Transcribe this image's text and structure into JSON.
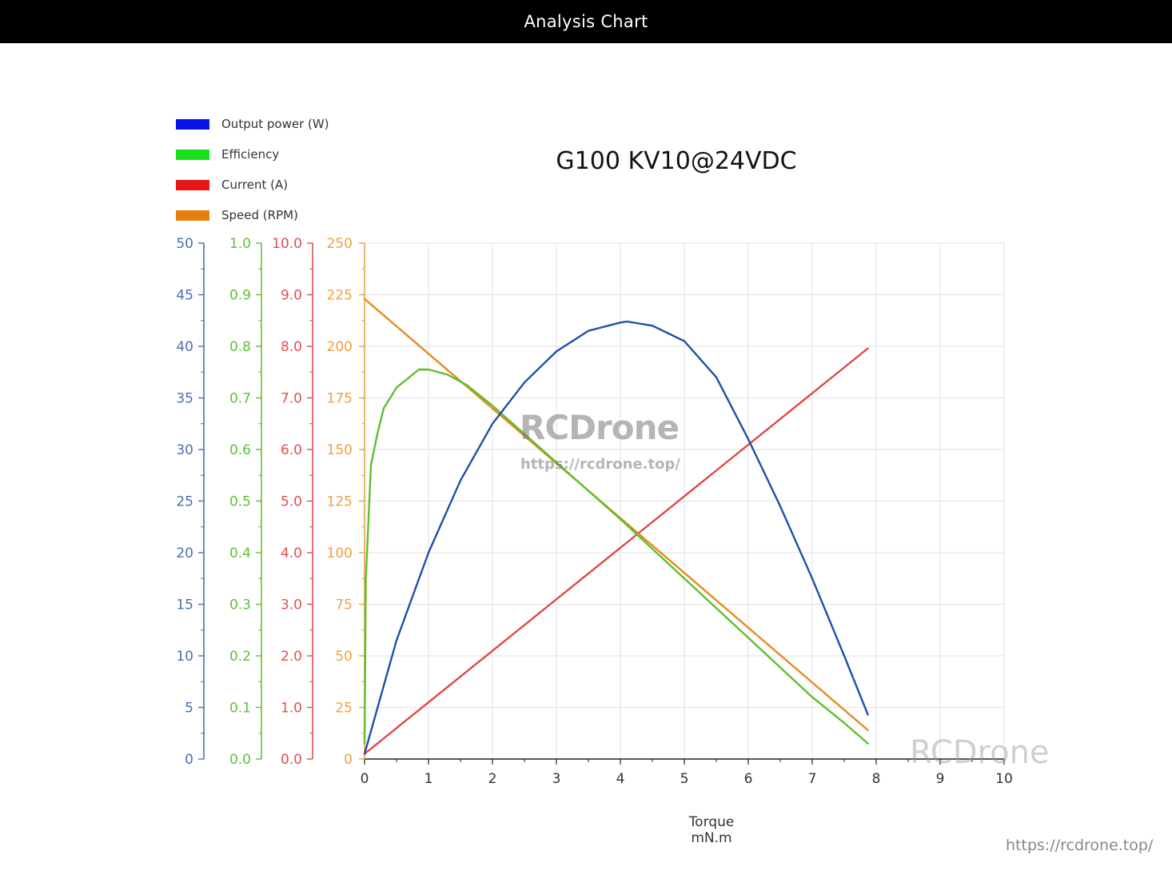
{
  "header": {
    "title": "Analysis Chart"
  },
  "chart_data": {
    "type": "line",
    "title": "G100 KV10@24VDC",
    "xlabel": "Torque",
    "xlabel_unit": "mN.m",
    "xlim": [
      0,
      10
    ],
    "x_ticks": [
      "0",
      "1",
      "2",
      "3",
      "4",
      "5",
      "6",
      "7",
      "8",
      "9",
      "10"
    ],
    "grid": true,
    "legend_placement": "top-left",
    "y_axes": [
      {
        "series": "Output power (W)",
        "range": [
          0,
          50
        ],
        "ticks": [
          "0",
          "5",
          "10",
          "15",
          "20",
          "25",
          "30",
          "35",
          "40",
          "45",
          "50"
        ],
        "color": "#4a6fb0"
      },
      {
        "series": "Efficiency",
        "range": [
          0,
          1.0
        ],
        "ticks": [
          "0.0",
          "0.1",
          "0.2",
          "0.3",
          "0.4",
          "0.5",
          "0.6",
          "0.7",
          "0.8",
          "0.9",
          "1.0"
        ],
        "color": "#5fbf3a"
      },
      {
        "series": "Current (A)",
        "range": [
          0,
          10.0
        ],
        "ticks": [
          "0.0",
          "1.0",
          "2.0",
          "3.0",
          "4.0",
          "5.0",
          "6.0",
          "7.0",
          "8.0",
          "9.0",
          "10.0"
        ],
        "color": "#e05050"
      },
      {
        "series": "Speed (RPM)",
        "range": [
          0,
          250
        ],
        "ticks": [
          "0",
          "25",
          "50",
          "75",
          "100",
          "125",
          "150",
          "175",
          "200",
          "225",
          "250"
        ],
        "color": "#f0a040"
      }
    ],
    "series": [
      {
        "name": "Output power (W)",
        "color": "#1f4fa8",
        "legend_color": "#0a14e6",
        "x": [
          0,
          0.5,
          1,
          1.5,
          2,
          2.5,
          3,
          3.5,
          4,
          4.1,
          4.5,
          5,
          5.5,
          6,
          6.5,
          7,
          7.5,
          7.87
        ],
        "y": [
          0.5,
          11.5,
          20,
          27,
          32.5,
          36.5,
          39.5,
          41.5,
          42.3,
          42.4,
          42,
          40.5,
          37,
          31,
          24.5,
          17.5,
          10,
          4.3
        ]
      },
      {
        "name": "Efficiency",
        "color": "#5cc02e",
        "legend_color": "#18e01c",
        "x": [
          0,
          0.02,
          0.1,
          0.2,
          0.3,
          0.5,
          0.7,
          0.85,
          1.0,
          1.3,
          1.6,
          2.0,
          3.0,
          4.0,
          5.0,
          6.0,
          7.0,
          7.5,
          7.87
        ],
        "y": [
          0.03,
          0.35,
          0.57,
          0.63,
          0.68,
          0.72,
          0.74,
          0.755,
          0.755,
          0.745,
          0.725,
          0.685,
          0.575,
          0.465,
          0.35,
          0.235,
          0.12,
          0.07,
          0.03
        ]
      },
      {
        "name": "Current (A)",
        "color": "#e04848",
        "legend_color": "#e61616",
        "x": [
          0,
          7.87
        ],
        "y": [
          0.1,
          7.96
        ]
      },
      {
        "name": "Speed (RPM)",
        "color": "#e88a20",
        "legend_color": "#e87e10",
        "x": [
          0,
          7.87
        ],
        "y": [
          223,
          14
        ]
      }
    ]
  },
  "watermarks": {
    "center": "RCDrone",
    "center_url": "https://rcdrone.top/",
    "corner": "RCDrone",
    "url": "https://rcdrone.top/"
  }
}
